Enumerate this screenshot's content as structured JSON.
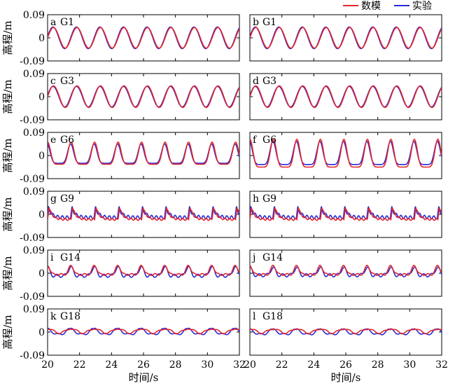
{
  "colors": {
    "model": "#e3262b",
    "experiment": "#2a2ad6",
    "axis": "#000000"
  },
  "legend": {
    "items": [
      {
        "label": "数模",
        "color": "#e3262b"
      },
      {
        "label": "实验",
        "color": "#2a2ad6"
      }
    ],
    "placement": "top-right"
  },
  "chart_data": {
    "type": "line",
    "layout": "6 rows x 2 columns",
    "x_axis": {
      "label": "时间/s",
      "range": [
        20,
        32
      ],
      "ticks": [
        "20",
        "22",
        "24",
        "26",
        "28",
        "30",
        "32"
      ]
    },
    "y_axis": {
      "label": "高程/m",
      "range": [
        -0.09,
        0.09
      ],
      "ticks": [
        "0.09",
        "0",
        "-0.09"
      ]
    },
    "wave_period_s": 1.47,
    "series_names": [
      "数模",
      "实验"
    ],
    "panels": [
      {
        "letter": "a",
        "gauge": "G1",
        "model": {
          "amplitude": 0.04,
          "offset": 0.0,
          "shape": "sine"
        },
        "experiment": {
          "amplitude": 0.042,
          "offset": 0.0,
          "shape": "sine"
        }
      },
      {
        "letter": "b",
        "gauge": "G1",
        "model": {
          "amplitude": 0.04,
          "offset": 0.0,
          "shape": "sine"
        },
        "experiment": {
          "amplitude": 0.042,
          "offset": 0.0,
          "shape": "sine"
        }
      },
      {
        "letter": "c",
        "gauge": "G3",
        "model": {
          "amplitude": 0.042,
          "offset": 0.0,
          "shape": "sine"
        },
        "experiment": {
          "amplitude": 0.04,
          "offset": 0.0,
          "shape": "sine"
        }
      },
      {
        "letter": "d",
        "gauge": "G3",
        "model": {
          "amplitude": 0.042,
          "offset": 0.0,
          "shape": "sine"
        },
        "experiment": {
          "amplitude": 0.04,
          "offset": 0.0,
          "shape": "sine"
        }
      },
      {
        "letter": "e",
        "gauge": "G6",
        "model": {
          "peak": 0.052,
          "trough": -0.034,
          "shape": "cnoidal"
        },
        "experiment": {
          "peak": 0.045,
          "trough": -0.03,
          "shape": "cnoidal"
        }
      },
      {
        "letter": "f",
        "gauge": "G6",
        "model": {
          "peak": 0.063,
          "trough": -0.045,
          "shape": "cnoidal"
        },
        "experiment": {
          "peak": 0.055,
          "trough": -0.035,
          "shape": "cnoidal"
        }
      },
      {
        "letter": "g",
        "gauge": "G9",
        "model": {
          "peak": 0.035,
          "trough": -0.02,
          "shape": "bore"
        },
        "experiment": {
          "peak": 0.03,
          "trough": -0.012,
          "shape": "bore"
        }
      },
      {
        "letter": "h",
        "gauge": "G9",
        "model": {
          "peak": 0.035,
          "trough": -0.02,
          "shape": "bore"
        },
        "experiment": {
          "peak": 0.03,
          "trough": -0.012,
          "shape": "bore"
        }
      },
      {
        "letter": "i",
        "gauge": "G14",
        "model": {
          "peak": 0.03,
          "trough": -0.005,
          "shape": "small"
        },
        "experiment": {
          "peak": 0.025,
          "trough": -0.01,
          "shape": "small"
        }
      },
      {
        "letter": "j",
        "gauge": "G14",
        "model": {
          "peak": 0.03,
          "trough": -0.005,
          "shape": "small"
        },
        "experiment": {
          "peak": 0.022,
          "trough": -0.008,
          "shape": "small"
        }
      },
      {
        "letter": "k",
        "gauge": "G18",
        "model": {
          "peak": 0.018,
          "trough": -0.004,
          "shape": "flat"
        },
        "experiment": {
          "peak": 0.015,
          "trough": -0.01,
          "shape": "flat"
        }
      },
      {
        "letter": "l",
        "gauge": "G18",
        "model": {
          "peak": 0.018,
          "trough": -0.004,
          "shape": "flat"
        },
        "experiment": {
          "peak": 0.012,
          "trough": -0.01,
          "shape": "flat"
        }
      }
    ]
  }
}
